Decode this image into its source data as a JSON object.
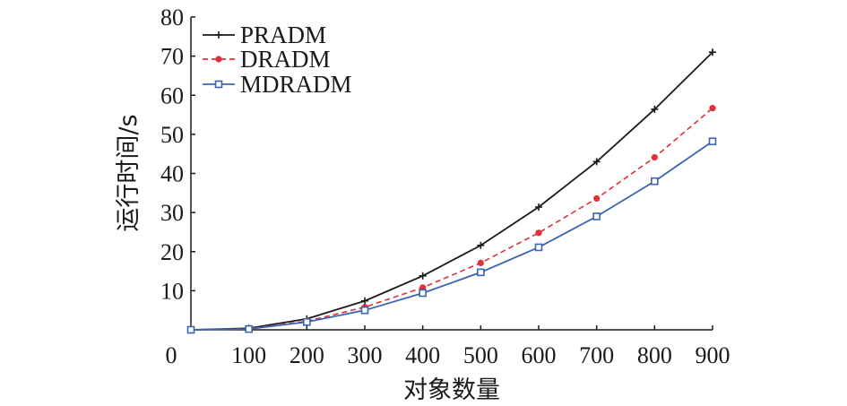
{
  "chart_data": {
    "type": "line",
    "title": "",
    "xlabel": "对象数量",
    "ylabel": "运行时间/s",
    "x": [
      0,
      100,
      200,
      300,
      400,
      500,
      600,
      700,
      800,
      900
    ],
    "x_tick_labels": [
      "0",
      "100",
      "200",
      "300",
      "400",
      "500",
      "600",
      "700",
      "800",
      "900"
    ],
    "y_tick_labels": [
      "10",
      "20",
      "30",
      "40",
      "50",
      "60",
      "70",
      "80"
    ],
    "xlim": [
      0,
      900
    ],
    "ylim": [
      0,
      80
    ],
    "grid": false,
    "legend_position": "top-left",
    "series": [
      {
        "name": "PRADM",
        "color": "#1a1a1a",
        "dash": "solid",
        "marker": "plus",
        "values": [
          0,
          0.4,
          2.8,
          7.4,
          13.8,
          21.6,
          31.4,
          43.0,
          56.4,
          71.0
        ]
      },
      {
        "name": "DRADM",
        "color": "#e0303a",
        "dash": "dashed",
        "marker": "dot",
        "values": [
          0,
          0.3,
          2.2,
          5.8,
          10.8,
          17.1,
          24.8,
          33.6,
          44.1,
          56.7
        ]
      },
      {
        "name": "MDRADM",
        "color": "#3a64b4",
        "dash": "solid",
        "marker": "square",
        "values": [
          0,
          0.2,
          2.0,
          5.0,
          9.4,
          14.7,
          21.1,
          29.0,
          38.0,
          48.2
        ]
      }
    ]
  }
}
